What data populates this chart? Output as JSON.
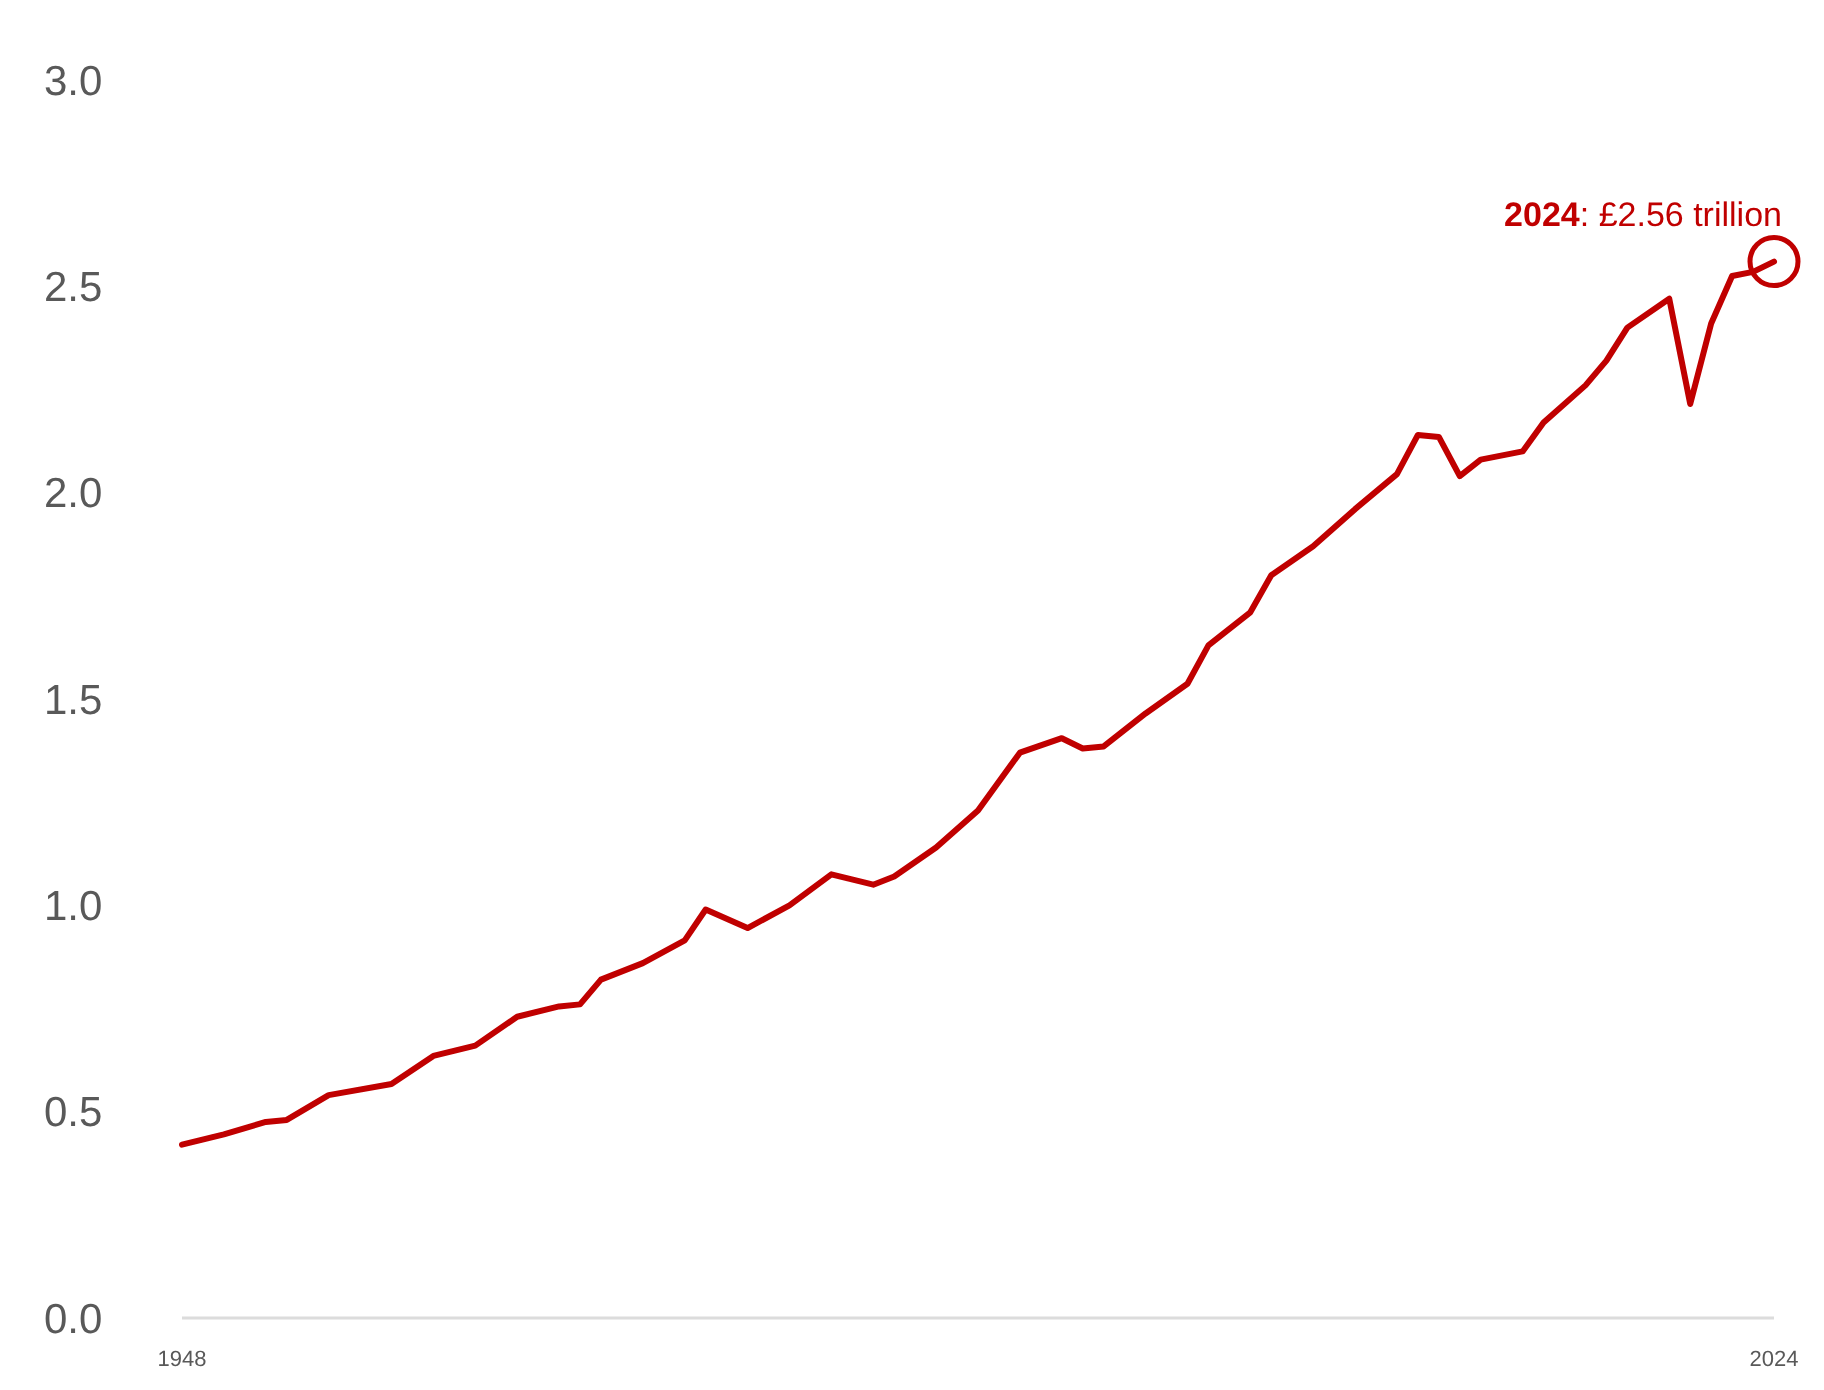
{
  "chart_data": {
    "type": "line",
    "x": [
      1948,
      1950,
      1952,
      1953,
      1955,
      1958,
      1960,
      1962,
      1964,
      1966,
      1967,
      1968,
      1970,
      1972,
      1973,
      1975,
      1977,
      1979,
      1981,
      1982,
      1984,
      1986,
      1988,
      1990,
      1991,
      1992,
      1994,
      1996,
      1997,
      1999,
      2000,
      2002,
      2004,
      2006,
      2007,
      2008,
      2009,
      2010,
      2012,
      2013,
      2015,
      2016,
      2017,
      2019,
      2020,
      2021,
      2022,
      2023,
      2024
    ],
    "series": [
      {
        "color": "#c00000",
        "values": [
          0.42,
          0.445,
          0.475,
          0.48,
          0.54,
          0.567,
          0.635,
          0.66,
          0.73,
          0.755,
          0.76,
          0.82,
          0.86,
          0.915,
          0.99,
          0.945,
          1.0,
          1.075,
          1.05,
          1.07,
          1.14,
          1.23,
          1.37,
          1.405,
          1.38,
          1.385,
          1.465,
          1.537,
          1.63,
          1.71,
          1.8,
          1.87,
          1.96,
          2.045,
          2.14,
          2.135,
          2.04,
          2.08,
          2.1,
          2.17,
          2.26,
          2.32,
          2.4,
          2.47,
          2.215,
          2.41,
          2.525,
          2.535,
          2.56
        ]
      }
    ],
    "xlim": [
      1948,
      2024
    ],
    "xticks": [
      1948,
      2024
    ],
    "ylim": [
      0,
      3
    ],
    "yticks": [
      {
        "value": 0,
        "label": "0.0"
      },
      {
        "value": 0.5,
        "label": "0.5"
      },
      {
        "value": 1,
        "label": "1.0"
      },
      {
        "value": 1.5,
        "label": "1.5"
      },
      {
        "value": 2,
        "label": "2.0"
      },
      {
        "value": 2.5,
        "label": "2.5"
      },
      {
        "value": 3,
        "label": "3.0"
      }
    ],
    "grid": false,
    "marker": "none",
    "line_style": "solid",
    "annotations": [
      {
        "text": "2024: £2.56 trillion",
        "x": 2024,
        "y": 2.56
      }
    ]
  }
}
